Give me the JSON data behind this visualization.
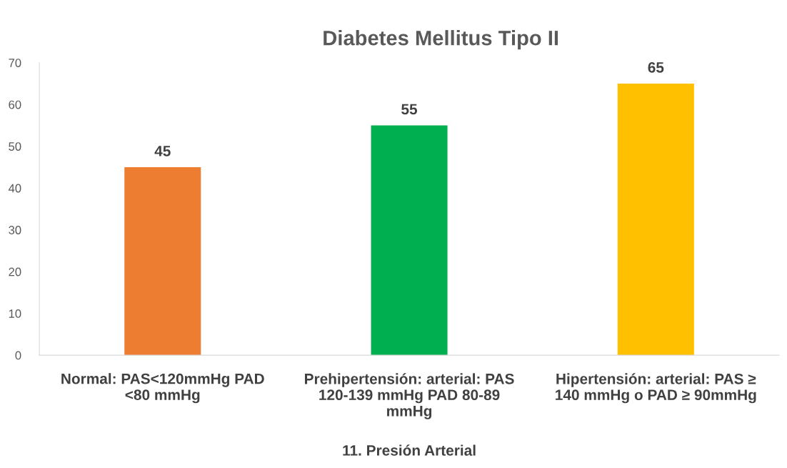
{
  "chart_data": {
    "type": "bar",
    "title": "Diabetes Mellitus Tipo II",
    "xlabel": "11. Presión Arterial",
    "categories": [
      "Normal: PAS<120mmHg PAD\n<80 mmHg",
      "Prehipertensión: arterial: PAS\n120-139 mmHg PAD 80-89\nmmHg",
      "Hipertensión: arterial: PAS ≥\n140 mmHg o PAD ≥ 90mmHg"
    ],
    "values": [
      45,
      55,
      65
    ],
    "colors": [
      "#ed7d31",
      "#00b050",
      "#ffc000"
    ],
    "ylim": [
      0,
      70
    ],
    "yticks": [
      0,
      10,
      20,
      30,
      40,
      50,
      60,
      70
    ],
    "data_labels": true,
    "grid": false,
    "legend": false
  }
}
